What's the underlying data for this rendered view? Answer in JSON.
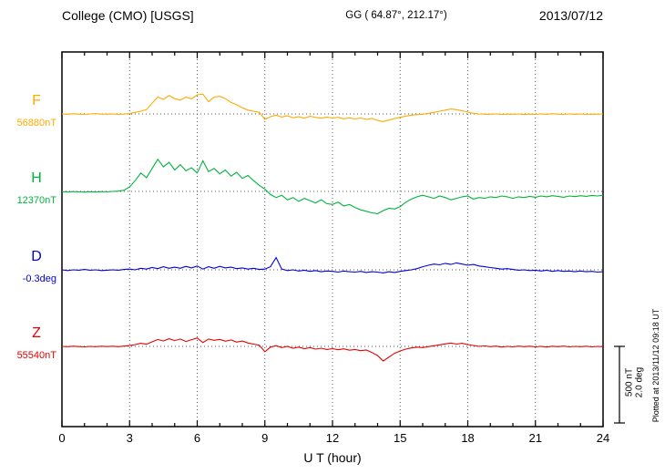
{
  "header": {
    "station": "College (CMO)  [USGS]",
    "coords": "GG ( 64.87°, 212.17°)",
    "date": "2013/07/12"
  },
  "footer": {
    "plotted_at": "Plotted at 2013/11/12 09:18 UT"
  },
  "scale_bar": {
    "nt_label": "500 nT",
    "deg_label": "2.0 deg"
  },
  "chart_data": {
    "type": "line",
    "title": "College (CMO) [USGS] magnetogram 2013/07/12",
    "xlabel": "U T (hour)",
    "x_start": 0,
    "x_end": 24,
    "x_step": 0.25,
    "x_ticks": [
      0,
      3,
      6,
      9,
      12,
      15,
      18,
      21,
      24
    ],
    "grid": "dotted at 3-hour intervals and at each channel baseline",
    "scale_per_div": {
      "nT": 500,
      "deg": 2.0
    },
    "series": [
      {
        "name": "F",
        "units": "nT",
        "color": "#ffaa00",
        "baseline": 56880,
        "baseline_label": "56880nT",
        "values": [
          56880,
          56878,
          56881,
          56879,
          56877,
          56880,
          56882,
          56879,
          56878,
          56880,
          56877,
          56879,
          56883,
          56890,
          56898,
          56908,
          56950,
          56990,
          56975,
          57000,
          56980,
          56970,
          56990,
          56978,
          57005,
          57010,
          56960,
          56990,
          56995,
          56980,
          56955,
          56940,
          56920,
          56905,
          56898,
          56890,
          56845,
          56862,
          56872,
          56860,
          56868,
          56855,
          56862,
          56852,
          56865,
          56858,
          56852,
          56860,
          56853,
          56858,
          56848,
          56855,
          56847,
          56854,
          56845,
          56850,
          56838,
          56830,
          56840,
          56850,
          56858,
          56866,
          56872,
          56876,
          56878,
          56884,
          56890,
          56898,
          56905,
          56912,
          56908,
          56900,
          56892,
          56884,
          56880,
          56878,
          56878,
          56880,
          56877,
          56879,
          56878,
          56880,
          56876,
          56879,
          56877,
          56880,
          56878,
          56881,
          56879,
          56877,
          56880,
          56878,
          56880,
          56877,
          56879,
          56878,
          56880
        ]
      },
      {
        "name": "H",
        "units": "nT",
        "color": "#00b43c",
        "baseline": 12370,
        "baseline_label": "12370nT",
        "values": [
          12368,
          12366,
          12369,
          12367,
          12365,
          12368,
          12366,
          12369,
          12367,
          12370,
          12372,
          12378,
          12400,
          12440,
          12490,
          12460,
          12520,
          12580,
          12530,
          12560,
          12510,
          12545,
          12505,
          12525,
          12490,
          12570,
          12500,
          12520,
          12485,
          12510,
          12470,
          12495,
          12455,
          12475,
          12440,
          12410,
          12385,
          12350,
          12330,
          12345,
          12315,
          12330,
          12305,
          12325,
          12310,
          12295,
          12315,
          12290,
          12285,
          12300,
          12275,
          12285,
          12265,
          12250,
          12240,
          12230,
          12225,
          12245,
          12260,
          12255,
          12270,
          12300,
          12320,
          12335,
          12345,
          12335,
          12325,
          12340,
          12330,
          12315,
          12325,
          12335,
          12340,
          12320,
          12330,
          12325,
          12335,
          12330,
          12340,
          12335,
          12325,
          12335,
          12330,
          12338,
          12332,
          12340,
          12335,
          12342,
          12338,
          12332,
          12340,
          12336,
          12342,
          12338,
          12344,
          12340,
          12345
        ]
      },
      {
        "name": "D",
        "units": "deg",
        "color": "#0000dc",
        "baseline": -0.3,
        "baseline_label": "-0.3deg",
        "values": [
          -0.3,
          -0.32,
          -0.3,
          -0.31,
          -0.29,
          -0.31,
          -0.3,
          -0.32,
          -0.31,
          -0.3,
          -0.31,
          -0.29,
          -0.28,
          -0.3,
          -0.26,
          -0.28,
          -0.24,
          -0.27,
          -0.22,
          -0.26,
          -0.23,
          -0.26,
          -0.21,
          -0.25,
          -0.2,
          -0.28,
          -0.22,
          -0.26,
          -0.21,
          -0.25,
          -0.23,
          -0.27,
          -0.25,
          -0.28,
          -0.26,
          -0.29,
          -0.28,
          -0.22,
          0.02,
          -0.28,
          -0.32,
          -0.3,
          -0.33,
          -0.31,
          -0.34,
          -0.32,
          -0.35,
          -0.33,
          -0.34,
          -0.36,
          -0.33,
          -0.35,
          -0.36,
          -0.34,
          -0.37,
          -0.35,
          -0.36,
          -0.38,
          -0.35,
          -0.37,
          -0.34,
          -0.32,
          -0.3,
          -0.27,
          -0.22,
          -0.18,
          -0.15,
          -0.17,
          -0.13,
          -0.16,
          -0.12,
          -0.15,
          -0.18,
          -0.16,
          -0.2,
          -0.22,
          -0.24,
          -0.26,
          -0.28,
          -0.27,
          -0.29,
          -0.31,
          -0.3,
          -0.32,
          -0.31,
          -0.33,
          -0.31,
          -0.34,
          -0.32,
          -0.34,
          -0.33,
          -0.35,
          -0.33,
          -0.35,
          -0.34,
          -0.36,
          -0.35
        ]
      },
      {
        "name": "Z",
        "units": "nT",
        "color": "#e60000",
        "baseline": 55540,
        "baseline_label": "55540nT",
        "values": [
          55540,
          55538,
          55541,
          55539,
          55537,
          55540,
          55538,
          55541,
          55539,
          55541,
          55538,
          55542,
          55545,
          55552,
          55560,
          55554,
          55570,
          55585,
          55575,
          55590,
          55578,
          55588,
          55572,
          55584,
          55595,
          55565,
          55588,
          55580,
          55586,
          55574,
          55582,
          55568,
          55575,
          55562,
          55555,
          55548,
          55505,
          55535,
          55545,
          55532,
          55540,
          55528,
          55535,
          55525,
          55532,
          55522,
          55528,
          55520,
          55525,
          55518,
          55524,
          55515,
          55520,
          55512,
          55516,
          55500,
          55480,
          55445,
          55470,
          55495,
          55510,
          55522,
          55530,
          55535,
          55532,
          55538,
          55544,
          55550,
          55556,
          55562,
          55555,
          55560,
          55552,
          55546,
          55540,
          55543,
          55538,
          55542,
          55536,
          55540,
          55537,
          55542,
          55538,
          55541,
          55537,
          55540,
          55536,
          55541,
          55538,
          55542,
          55537,
          55540,
          55538,
          55541,
          55537,
          55540,
          55538
        ]
      }
    ]
  }
}
